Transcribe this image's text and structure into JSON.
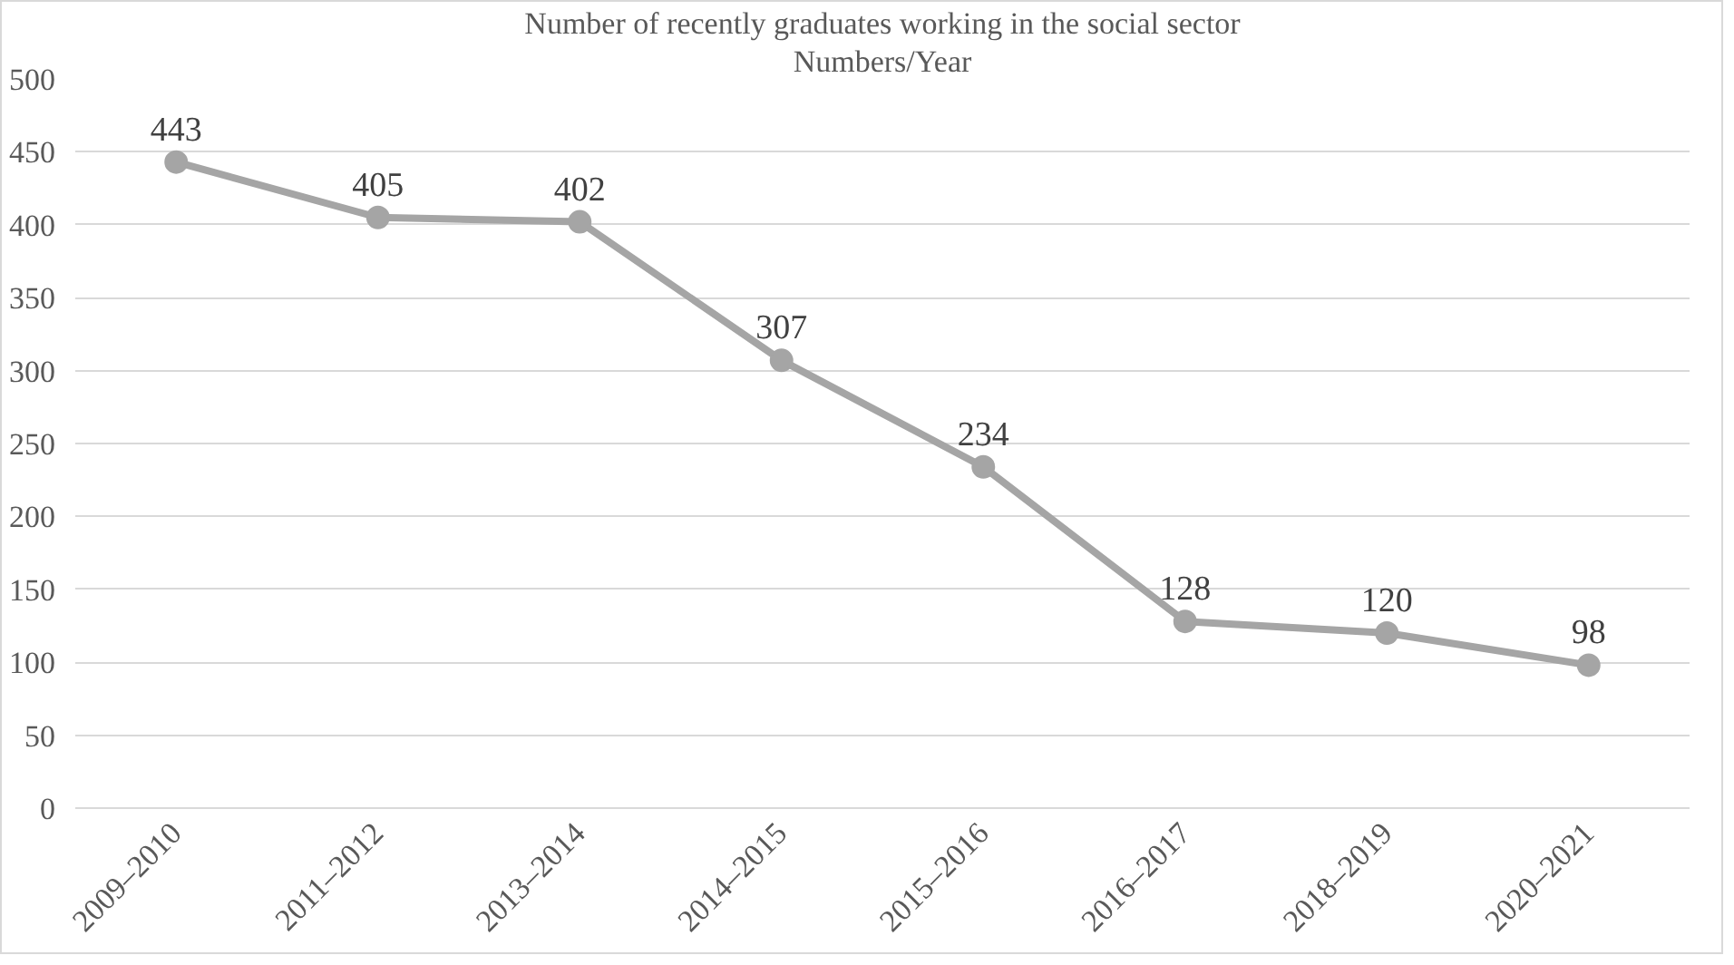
{
  "chart_data": {
    "type": "line",
    "title": "Number of recently graduates working in the social sector",
    "subtitle": "Numbers/Year",
    "categories": [
      "2009–2010",
      "2011–2012",
      "2013–2014",
      "2014–2015",
      "2015–2016",
      "2016–2017",
      "2018–2019",
      "2020–2021"
    ],
    "series": [
      {
        "color": "#a5a5a5",
        "values": [
          443,
          405,
          402,
          307,
          234,
          128,
          120,
          98
        ]
      }
    ],
    "ylim": [
      0,
      500
    ],
    "yticks": [
      0,
      50,
      100,
      150,
      200,
      250,
      300,
      350,
      400,
      450,
      500
    ],
    "grid": "y",
    "marker": "circle",
    "line_style": "solid",
    "data_labels": true
  }
}
